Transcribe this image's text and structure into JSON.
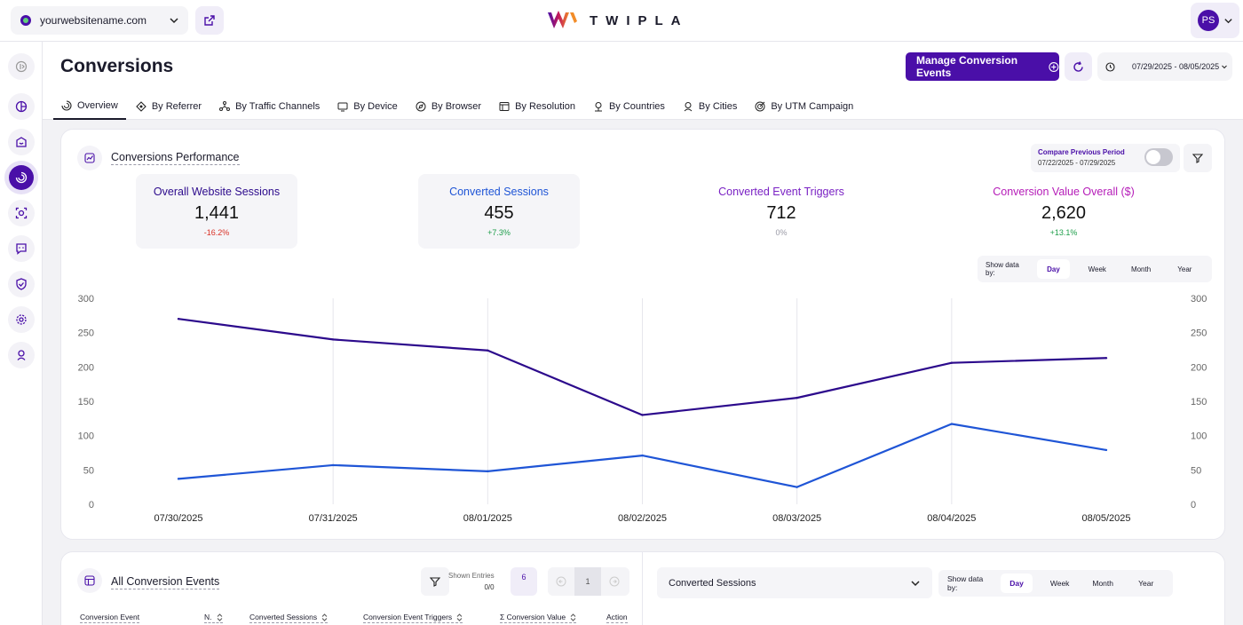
{
  "topbar": {
    "site": "yourwebsitename.com",
    "brand": "TWIPLA",
    "user_initials": "PS"
  },
  "page": {
    "title": "Conversions",
    "manage_label": "Manage Conversion Events",
    "date_range": "07/29/2025 - 08/05/2025"
  },
  "tabs": [
    {
      "label": "Overview",
      "icon": "overview-icon"
    },
    {
      "label": "By Referrer",
      "icon": "referrer-icon"
    },
    {
      "label": "By Traffic Channels",
      "icon": "traffic-channels-icon"
    },
    {
      "label": "By Device",
      "icon": "device-icon"
    },
    {
      "label": "By Browser",
      "icon": "browser-icon"
    },
    {
      "label": "By Resolution",
      "icon": "resolution-icon"
    },
    {
      "label": "By Countries",
      "icon": "countries-icon"
    },
    {
      "label": "By Cities",
      "icon": "cities-icon"
    },
    {
      "label": "By UTM Campaign",
      "icon": "utm-campaign-icon"
    }
  ],
  "sidebar": {
    "items": [
      "collapse-icon",
      "dashboard-icon",
      "store-icon",
      "conversions-icon",
      "behavior-icon",
      "feedback-icon",
      "privacy-icon",
      "settings-icon",
      "location-icon"
    ]
  },
  "performance": {
    "title": "Conversions Performance",
    "compare_label": "Compare Previous Period",
    "compare_dates": "07/22/2025 - 07/29/2025",
    "metrics": [
      {
        "label": "Overall Website Sessions",
        "value": "1,441",
        "change": "-16.2%",
        "color": "#2c0a8c",
        "change_color": "#d93025"
      },
      {
        "label": "Converted Sessions",
        "value": "455",
        "change": "+7.3%",
        "color": "#1f55d6",
        "change_color": "#1e9e4a"
      },
      {
        "label": "Converted Event Triggers",
        "value": "712",
        "change": "0%",
        "color": "#7a22c4",
        "change_color": "#9a9aa6"
      },
      {
        "label": "Conversion Value Overall ($)",
        "value": "2,620",
        "change": "+13.1%",
        "color": "#b51cb8",
        "change_color": "#1e9e4a"
      }
    ],
    "show_data_by": "Show data by:",
    "ranges": [
      "Day",
      "Week",
      "Month",
      "Year"
    ]
  },
  "chart_data": {
    "type": "line",
    "categories": [
      "07/30/2025",
      "07/31/2025",
      "08/01/2025",
      "08/02/2025",
      "08/03/2025",
      "08/04/2025",
      "08/05/2025"
    ],
    "series": [
      {
        "name": "Overall Website Sessions",
        "color": "#2c0a8c",
        "values": [
          270,
          240,
          224,
          130,
          155,
          206,
          213
        ]
      },
      {
        "name": "Converted Sessions",
        "color": "#1f55d6",
        "values": [
          37,
          57,
          48,
          71,
          25,
          117,
          79
        ]
      }
    ],
    "yticks": [
      0,
      50,
      100,
      150,
      200,
      250,
      300
    ],
    "ylim": [
      0,
      300
    ],
    "grid": "vertical",
    "dual_axis_labels": true
  },
  "events": {
    "title": "All Conversion Events",
    "shown_entries_label": "Shown Entries",
    "shown_entries_value": "0/0",
    "entries_per_page": "6",
    "page": "1",
    "columns": [
      "Conversion Event",
      "N.",
      "Converted Sessions",
      "Conversion Event Triggers",
      "Σ Conversion Value",
      "Action"
    ]
  },
  "sessions_panel": {
    "selected": "Converted Sessions",
    "show_data_by": "Show data by:",
    "ranges": [
      "Day",
      "Week",
      "Month",
      "Year"
    ]
  }
}
